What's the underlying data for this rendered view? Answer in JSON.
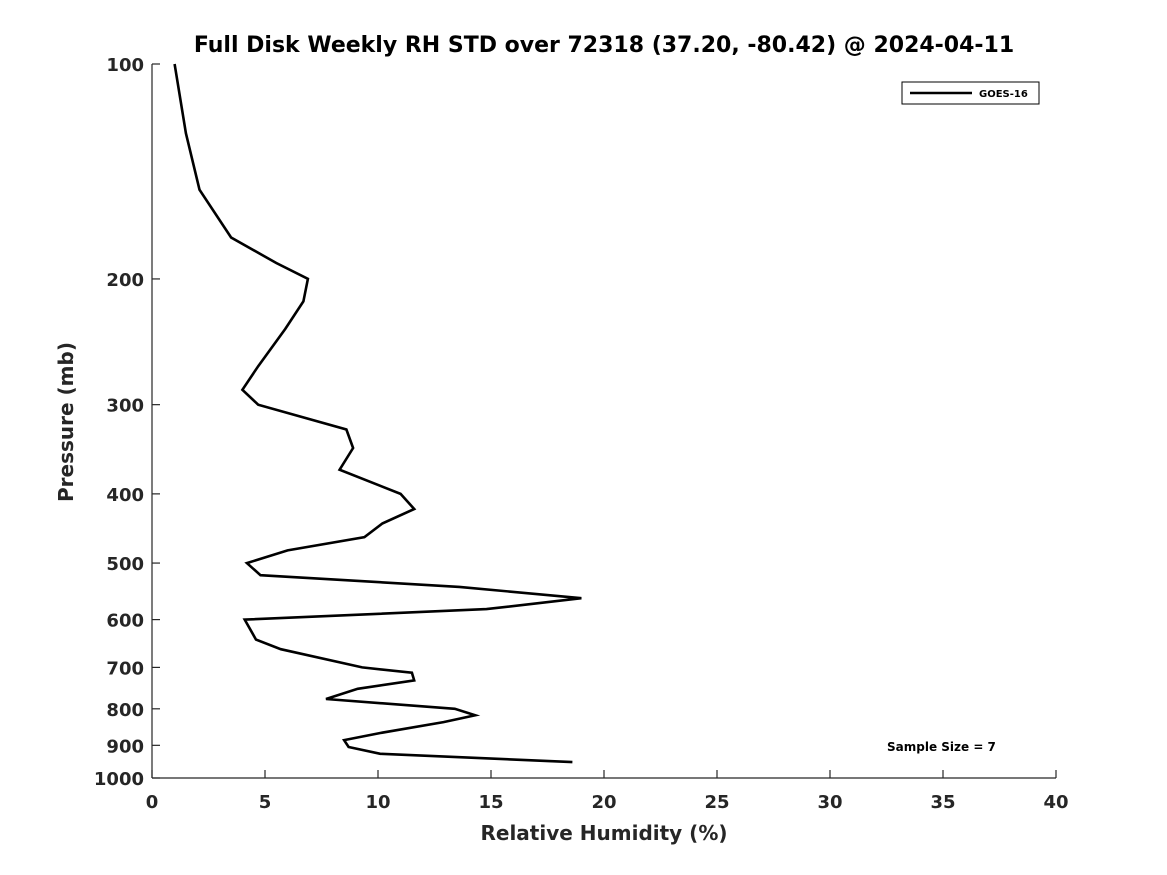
{
  "chart_data": {
    "type": "line",
    "title": "Full Disk Weekly RH STD over 72318 (37.20, -80.42) @ 2024-04-11",
    "xlabel": "Relative Humidity (%)",
    "ylabel": "Pressure (mb)",
    "xlim": [
      0,
      40
    ],
    "ylim": [
      1000,
      100
    ],
    "y_scale": "log",
    "y_reversed": true,
    "x_ticks": [
      0,
      5,
      10,
      15,
      20,
      25,
      30,
      35,
      40
    ],
    "y_ticks": [
      100,
      200,
      300,
      400,
      500,
      600,
      700,
      800,
      900,
      1000
    ],
    "grid": false,
    "legend_position": "top-right",
    "annotation": "Sample Size = 7",
    "series": [
      {
        "name": "GOES-16",
        "color": "#000000",
        "points": [
          {
            "x": 1.0,
            "y": 100
          },
          {
            "x": 1.5,
            "y": 125
          },
          {
            "x": 2.1,
            "y": 150
          },
          {
            "x": 3.5,
            "y": 175
          },
          {
            "x": 5.5,
            "y": 190
          },
          {
            "x": 6.9,
            "y": 200
          },
          {
            "x": 6.7,
            "y": 215
          },
          {
            "x": 5.9,
            "y": 235
          },
          {
            "x": 4.7,
            "y": 265
          },
          {
            "x": 4.0,
            "y": 286
          },
          {
            "x": 4.7,
            "y": 300
          },
          {
            "x": 8.6,
            "y": 325
          },
          {
            "x": 8.9,
            "y": 345
          },
          {
            "x": 8.3,
            "y": 370
          },
          {
            "x": 11.0,
            "y": 400
          },
          {
            "x": 11.6,
            "y": 420
          },
          {
            "x": 10.2,
            "y": 440
          },
          {
            "x": 9.4,
            "y": 460
          },
          {
            "x": 6.0,
            "y": 480
          },
          {
            "x": 4.2,
            "y": 500
          },
          {
            "x": 4.8,
            "y": 520
          },
          {
            "x": 13.6,
            "y": 540
          },
          {
            "x": 19.0,
            "y": 560
          },
          {
            "x": 14.8,
            "y": 580
          },
          {
            "x": 4.1,
            "y": 600
          },
          {
            "x": 4.6,
            "y": 640
          },
          {
            "x": 5.7,
            "y": 660
          },
          {
            "x": 9.3,
            "y": 700
          },
          {
            "x": 11.5,
            "y": 712
          },
          {
            "x": 11.6,
            "y": 730
          },
          {
            "x": 9.1,
            "y": 750
          },
          {
            "x": 7.7,
            "y": 775
          },
          {
            "x": 13.4,
            "y": 800
          },
          {
            "x": 14.3,
            "y": 817
          },
          {
            "x": 12.9,
            "y": 835
          },
          {
            "x": 10.1,
            "y": 865
          },
          {
            "x": 8.5,
            "y": 885
          },
          {
            "x": 8.7,
            "y": 905
          },
          {
            "x": 10.1,
            "y": 925
          },
          {
            "x": 18.6,
            "y": 950
          }
        ]
      }
    ]
  }
}
